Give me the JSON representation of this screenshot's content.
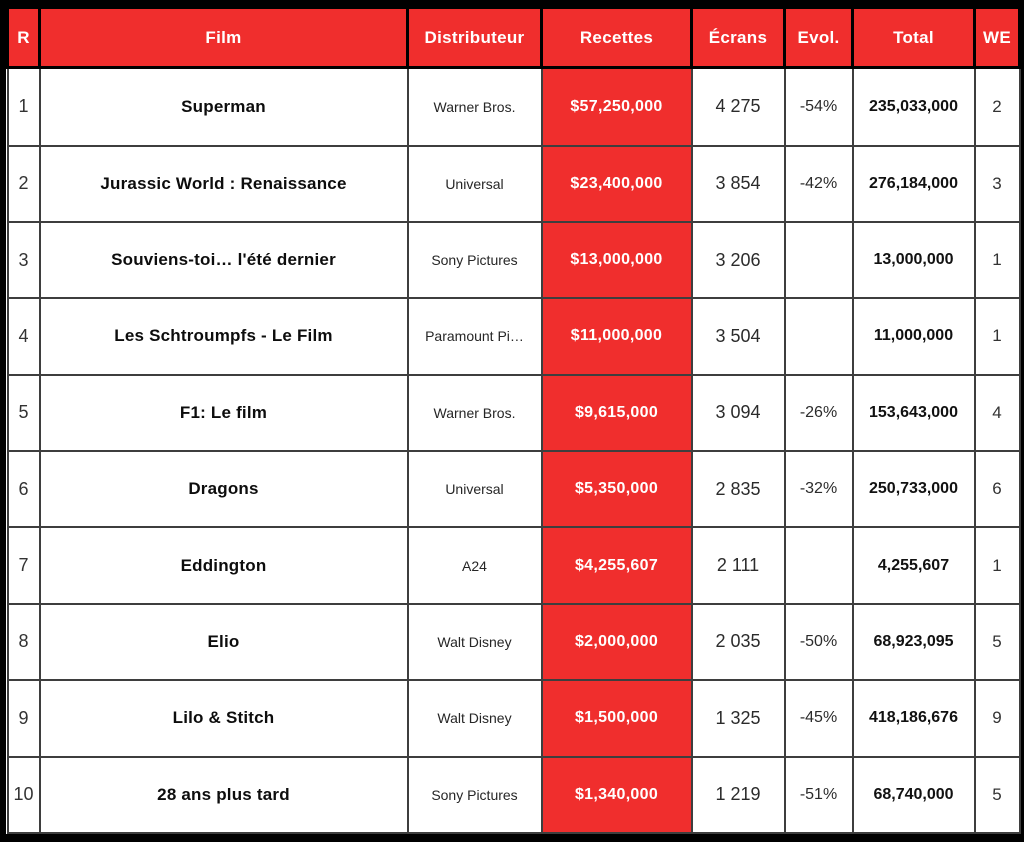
{
  "colors": {
    "header_red": "#F02E2D",
    "grid_dark": "#3E3E3E",
    "frame_black": "#000000",
    "header_text": "#FFFFFF"
  },
  "table": {
    "columns": [
      {
        "key": "rank",
        "label": "R"
      },
      {
        "key": "film",
        "label": "Film"
      },
      {
        "key": "distributor",
        "label": "Distributeur"
      },
      {
        "key": "receipts",
        "label": "Recettes"
      },
      {
        "key": "screens",
        "label": "Écrans"
      },
      {
        "key": "evolution",
        "label": "Evol."
      },
      {
        "key": "total",
        "label": "Total"
      },
      {
        "key": "weekend",
        "label": "WE"
      }
    ],
    "rows": [
      {
        "rank": "1",
        "film": "Superman",
        "distributor": "Warner Bros.",
        "receipts": "$57,250,000",
        "screens": "4 275",
        "evolution": "-54%",
        "total": "235,033,000",
        "weekend": "2"
      },
      {
        "rank": "2",
        "film": "Jurassic World : Renaissance",
        "distributor": "Universal",
        "receipts": "$23,400,000",
        "screens": "3 854",
        "evolution": "-42%",
        "total": "276,184,000",
        "weekend": "3"
      },
      {
        "rank": "3",
        "film": "Souviens-toi… l'été dernier",
        "distributor": "Sony Pictures",
        "receipts": "$13,000,000",
        "screens": "3 206",
        "evolution": "",
        "total": "13,000,000",
        "weekend": "1"
      },
      {
        "rank": "4",
        "film": "Les Schtroumpfs - Le Film",
        "distributor": "Paramount Pi…",
        "receipts": "$11,000,000",
        "screens": "3 504",
        "evolution": "",
        "total": "11,000,000",
        "weekend": "1"
      },
      {
        "rank": "5",
        "film": "F1: Le film",
        "distributor": "Warner Bros.",
        "receipts": "$9,615,000",
        "screens": "3 094",
        "evolution": "-26%",
        "total": "153,643,000",
        "weekend": "4"
      },
      {
        "rank": "6",
        "film": "Dragons",
        "distributor": "Universal",
        "receipts": "$5,350,000",
        "screens": "2 835",
        "evolution": "-32%",
        "total": "250,733,000",
        "weekend": "6"
      },
      {
        "rank": "7",
        "film": "Eddington",
        "distributor": "A24",
        "receipts": "$4,255,607",
        "screens": "2 111",
        "evolution": "",
        "total": "4,255,607",
        "weekend": "1"
      },
      {
        "rank": "8",
        "film": "Elio",
        "distributor": "Walt Disney",
        "receipts": "$2,000,000",
        "screens": "2 035",
        "evolution": "-50%",
        "total": "68,923,095",
        "weekend": "5"
      },
      {
        "rank": "9",
        "film": "Lilo & Stitch",
        "distributor": "Walt Disney",
        "receipts": "$1,500,000",
        "screens": "1 325",
        "evolution": "-45%",
        "total": "418,186,676",
        "weekend": "9"
      },
      {
        "rank": "10",
        "film": "28 ans plus tard",
        "distributor": "Sony Pictures",
        "receipts": "$1,340,000",
        "screens": "1 219",
        "evolution": "-51%",
        "total": "68,740,000",
        "weekend": "5"
      }
    ]
  }
}
